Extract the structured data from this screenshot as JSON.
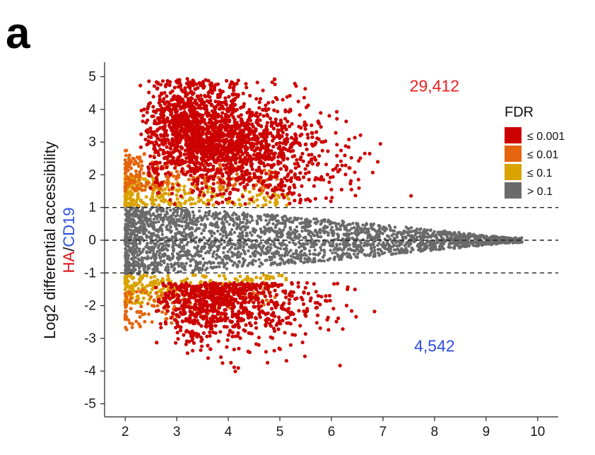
{
  "panel_letter": "a",
  "chart_data": {
    "type": "scatter",
    "ylabel_line1": "Log2 differential accessibility",
    "ylabel_line2_parts": [
      {
        "text": "HA",
        "color": "#d9141b"
      },
      {
        "text": "/",
        "color": "#111111"
      },
      {
        "text": "CD19",
        "color": "#2c4fe0"
      }
    ],
    "xlim": [
      1.6,
      10.4
    ],
    "ylim": [
      -5.4,
      5.4
    ],
    "x_ticks": [
      2,
      3,
      4,
      5,
      6,
      7,
      8,
      9,
      10
    ],
    "y_ticks": [
      5,
      4,
      3,
      2,
      1,
      0,
      -1,
      -2,
      -3,
      -4,
      -5
    ],
    "y_tick_labels": [
      "5",
      "4",
      "3",
      "2",
      "1",
      "0",
      "-1",
      "-2",
      "-3",
      "-4",
      "-5"
    ],
    "reference_lines_y": [
      1,
      0,
      -1
    ],
    "reference_line_style": "dashed",
    "grid": false,
    "counts": [
      {
        "text": "29,412",
        "x": 8.0,
        "y": 4.55,
        "color": "#e8201e"
      },
      {
        "text": "4,542",
        "x": 8.0,
        "y": -3.4,
        "color": "#2c4fe0"
      }
    ],
    "legend": {
      "title": "FDR",
      "position": "right",
      "items": [
        {
          "label": "≤ 0.001",
          "color": "#cc0000"
        },
        {
          "label": "≤ 0.01",
          "color": "#e5640e"
        },
        {
          "label": "≤ 0.1",
          "color": "#d9a300"
        },
        {
          "label": "> 0.1",
          "color": "#6a6a6a"
        }
      ]
    }
  }
}
